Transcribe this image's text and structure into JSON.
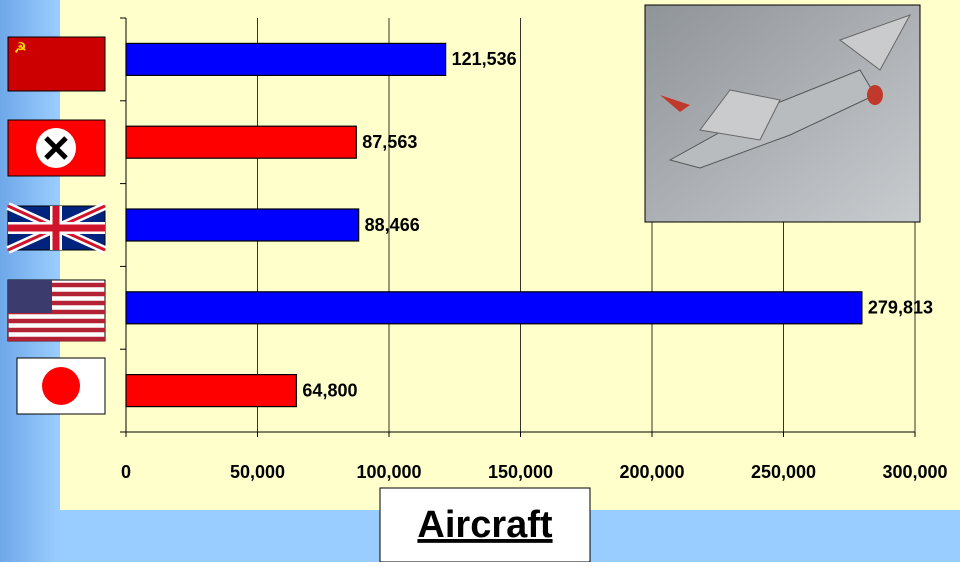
{
  "chart_data": {
    "type": "bar",
    "orientation": "horizontal",
    "x_label": "Aircraft",
    "categories": [
      null,
      null,
      null,
      null,
      null
    ],
    "values": [
      121536,
      87563,
      88466,
      279813,
      64800
    ],
    "value_labels": [
      "121,536",
      "87,563",
      "88,466",
      "279,813",
      "64,800"
    ],
    "colors": [
      "#0000ff",
      "#ff0000",
      "#0000ff",
      "#0000ff",
      "#ff0000"
    ],
    "xlim": [
      0,
      300000
    ],
    "xticks": [
      0,
      {
        "value": 50000,
        "label": "50,000"
      },
      {
        "value": 100000,
        "label": "100,000"
      },
      {
        "value": 150000,
        "label": "150,000"
      },
      {
        "value": 200000,
        "label": "200,000"
      },
      {
        "value": 250000,
        "label": "250,000"
      },
      {
        "value": 300000,
        "label": "300,000"
      }
    ],
    "grid": true
  }
}
